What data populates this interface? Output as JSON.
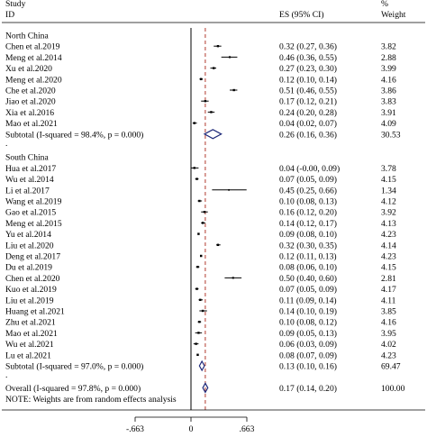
{
  "header": {
    "study": "Study",
    "id": "ID",
    "es": "ES (95% CI)",
    "percent": "%",
    "weight": "Weight"
  },
  "chart_data": {
    "type": "forest",
    "xaxis": {
      "min": -0.663,
      "max": 0.663,
      "null_line": 0,
      "ticks": [
        "-.663",
        "0",
        ".663"
      ]
    },
    "overall_effect_line": 0.17,
    "groups": [
      {
        "label": "North China",
        "studies": [
          {
            "id": "Chen et al.2019",
            "es": 0.32,
            "lo": 0.27,
            "hi": 0.36,
            "ci_text": "0.32 (0.27, 0.36)",
            "weight": "3.82"
          },
          {
            "id": "Meng et al.2014",
            "es": 0.46,
            "lo": 0.36,
            "hi": 0.55,
            "ci_text": "0.46 (0.36, 0.55)",
            "weight": "2.88"
          },
          {
            "id": "Xu et al.2020",
            "es": 0.27,
            "lo": 0.23,
            "hi": 0.3,
            "ci_text": "0.27 (0.23, 0.30)",
            "weight": "3.99"
          },
          {
            "id": "Meng et al.2020",
            "es": 0.12,
            "lo": 0.1,
            "hi": 0.14,
            "ci_text": "0.12 (0.10, 0.14)",
            "weight": "4.16"
          },
          {
            "id": "Che et al.2020",
            "es": 0.51,
            "lo": 0.46,
            "hi": 0.55,
            "ci_text": "0.51 (0.46, 0.55)",
            "weight": "3.86"
          },
          {
            "id": "Jiao et al.2020",
            "es": 0.17,
            "lo": 0.12,
            "hi": 0.21,
            "ci_text": "0.17 (0.12, 0.21)",
            "weight": "3.83"
          },
          {
            "id": "Xia et al.2016",
            "es": 0.24,
            "lo": 0.2,
            "hi": 0.28,
            "ci_text": "0.24 (0.20, 0.28)",
            "weight": "3.91"
          },
          {
            "id": "Mao et al.2021",
            "es": 0.04,
            "lo": 0.02,
            "hi": 0.07,
            "ci_text": "0.04 (0.02, 0.07)",
            "weight": "4.09"
          }
        ],
        "subtotal": {
          "label": "Subtotal  (I-squared = 98.4%, p = 0.000)",
          "es": 0.26,
          "lo": 0.16,
          "hi": 0.36,
          "ci_text": "0.26 (0.16, 0.36)",
          "weight": "30.53"
        }
      },
      {
        "label": "South China",
        "studies": [
          {
            "id": "Hua et al.2017",
            "es": 0.04,
            "lo": -0.0,
            "hi": 0.09,
            "ci_text": "0.04 (-0.00, 0.09)",
            "weight": "3.78"
          },
          {
            "id": "Wu et al.2014",
            "es": 0.07,
            "lo": 0.05,
            "hi": 0.09,
            "ci_text": "0.07 (0.05, 0.09)",
            "weight": "4.15"
          },
          {
            "id": "Li et al.2017",
            "es": 0.45,
            "lo": 0.25,
            "hi": 0.66,
            "ci_text": "0.45 (0.25, 0.66)",
            "weight": "1.34"
          },
          {
            "id": "Wang et al.2019",
            "es": 0.1,
            "lo": 0.08,
            "hi": 0.13,
            "ci_text": "0.10 (0.08, 0.13)",
            "weight": "4.12"
          },
          {
            "id": "Gao et al.2015",
            "es": 0.16,
            "lo": 0.12,
            "hi": 0.2,
            "ci_text": "0.16 (0.12, 0.20)",
            "weight": "3.92"
          },
          {
            "id": "Meng et al.2015",
            "es": 0.14,
            "lo": 0.12,
            "hi": 0.17,
            "ci_text": "0.14 (0.12, 0.17)",
            "weight": "4.13"
          },
          {
            "id": "Yu et al.2014",
            "es": 0.09,
            "lo": 0.08,
            "hi": 0.1,
            "ci_text": "0.09 (0.08, 0.10)",
            "weight": "4.23"
          },
          {
            "id": "Liu et al.2020",
            "es": 0.32,
            "lo": 0.3,
            "hi": 0.35,
            "ci_text": "0.32 (0.30, 0.35)",
            "weight": "4.14"
          },
          {
            "id": "Deng et al.2017",
            "es": 0.12,
            "lo": 0.11,
            "hi": 0.13,
            "ci_text": "0.12 (0.11, 0.13)",
            "weight": "4.23"
          },
          {
            "id": "Du et al.2019",
            "es": 0.08,
            "lo": 0.06,
            "hi": 0.1,
            "ci_text": "0.08 (0.06, 0.10)",
            "weight": "4.15"
          },
          {
            "id": "Chen et al.2020",
            "es": 0.5,
            "lo": 0.4,
            "hi": 0.6,
            "ci_text": "0.50 (0.40, 0.60)",
            "weight": "2.81"
          },
          {
            "id": "Kuo et al.2019",
            "es": 0.07,
            "lo": 0.05,
            "hi": 0.09,
            "ci_text": "0.07 (0.05, 0.09)",
            "weight": "4.17"
          },
          {
            "id": "Liu et al.2019",
            "es": 0.11,
            "lo": 0.09,
            "hi": 0.14,
            "ci_text": "0.11 (0.09, 0.14)",
            "weight": "4.11"
          },
          {
            "id": "Huang et al.2021",
            "es": 0.14,
            "lo": 0.1,
            "hi": 0.19,
            "ci_text": "0.14 (0.10, 0.19)",
            "weight": "3.85"
          },
          {
            "id": "Zhu et al.2021",
            "es": 0.1,
            "lo": 0.08,
            "hi": 0.12,
            "ci_text": "0.10 (0.08, 0.12)",
            "weight": "4.16"
          },
          {
            "id": "Mao et al.2021",
            "es": 0.09,
            "lo": 0.05,
            "hi": 0.13,
            "ci_text": "0.09 (0.05, 0.13)",
            "weight": "3.95"
          },
          {
            "id": "Wu et al.2021",
            "es": 0.06,
            "lo": 0.03,
            "hi": 0.09,
            "ci_text": "0.06 (0.03, 0.09)",
            "weight": "4.02"
          },
          {
            "id": "Lu et al.2021",
            "es": 0.08,
            "lo": 0.07,
            "hi": 0.09,
            "ci_text": "0.08 (0.07, 0.09)",
            "weight": "4.23"
          }
        ],
        "subtotal": {
          "label": "Subtotal  (I-squared = 97.0%, p = 0.000)",
          "es": 0.13,
          "lo": 0.1,
          "hi": 0.16,
          "ci_text": "0.13 (0.10, 0.16)",
          "weight": "69.47"
        }
      }
    ],
    "overall": {
      "label": "Overall  (I-squared = 97.8%, p = 0.000)",
      "es": 0.17,
      "lo": 0.14,
      "hi": 0.2,
      "ci_text": "0.17 (0.14, 0.20)",
      "weight": "100.00"
    },
    "note": "NOTE: Weights are from random effects analysis",
    "separator_mark": "."
  },
  "colors": {
    "text": "#000000",
    "diamond": "#1f2a7a",
    "ref_line": "#b03a2e"
  }
}
